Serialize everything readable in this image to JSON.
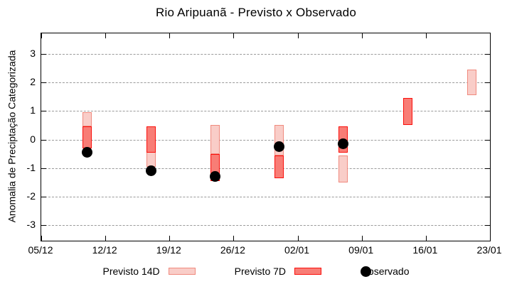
{
  "title": "Rio Aripuanã - Previsto x Observado",
  "axes": {
    "y_label": "Anomalia de Preciptação Categorizada",
    "y_ticks": [
      "3",
      "2",
      "1",
      "0",
      "-1",
      "-2",
      "-3"
    ],
    "x_ticks": [
      {
        "label": "05/12",
        "day": 0
      },
      {
        "label": "12/12",
        "day": 7
      },
      {
        "label": "19/12",
        "day": 14
      },
      {
        "label": "26/12",
        "day": 21
      },
      {
        "label": "02/01",
        "day": 28
      },
      {
        "label": "09/01",
        "day": 35
      },
      {
        "label": "16/01",
        "day": 42
      },
      {
        "label": "23/01",
        "day": 49
      }
    ]
  },
  "legend": [
    {
      "label": "Previsto 14D",
      "swatch": "box-light"
    },
    {
      "label": "Previsto 7D",
      "swatch": "box-dark"
    },
    {
      "label": "Observado",
      "swatch": "dot"
    }
  ],
  "colors": {
    "light_fill": "#f9cdc8",
    "light_border": "#f08a7e",
    "dark_fill": "#f87d76",
    "dark_border": "#fa100c",
    "dot": "#000000",
    "grid": "#9a9a9a",
    "axis": "#000000"
  },
  "chart_data": {
    "type": "bar",
    "subtype": "floating-range-bars-with-points",
    "title": "Rio Aripuanã - Previsto x Observado",
    "xlabel": "",
    "ylabel": "Anomalia de Preciptação Categorizada",
    "ylim": [
      -3.62,
      3.71
    ],
    "x_axis_dates": [
      "05/12",
      "12/12",
      "19/12",
      "26/12",
      "02/01",
      "09/01",
      "16/01",
      "23/01"
    ],
    "grid": "horizontal-dashed",
    "legend_position": "below-chart",
    "cluster_dates": [
      "10/12",
      "17/12",
      "24/12",
      "31/12",
      "07/01",
      "14/01",
      "21/01"
    ],
    "cluster_days_from_axis_start": [
      5,
      12,
      19,
      26,
      33,
      40,
      47
    ],
    "series": [
      {
        "name": "Previsto 14D",
        "kind": "range",
        "ranges": [
          [
            0.45,
            0.95
          ],
          [
            -0.95,
            0.45
          ],
          [
            -0.5,
            0.5
          ],
          [
            -0.55,
            0.5
          ],
          [
            -1.5,
            -0.55
          ],
          null,
          [
            1.55,
            2.45
          ]
        ]
      },
      {
        "name": "Previsto 7D",
        "kind": "range",
        "ranges": [
          [
            -0.3,
            0.45
          ],
          [
            -0.45,
            0.45
          ],
          [
            -1.45,
            -0.5
          ],
          [
            -1.35,
            -0.55
          ],
          [
            -0.45,
            0.45
          ],
          [
            0.5,
            1.45
          ],
          null
        ]
      },
      {
        "name": "Observado",
        "kind": "point",
        "values": [
          -0.45,
          -1.1,
          -1.3,
          -0.25,
          -0.15,
          null,
          null
        ]
      }
    ]
  }
}
